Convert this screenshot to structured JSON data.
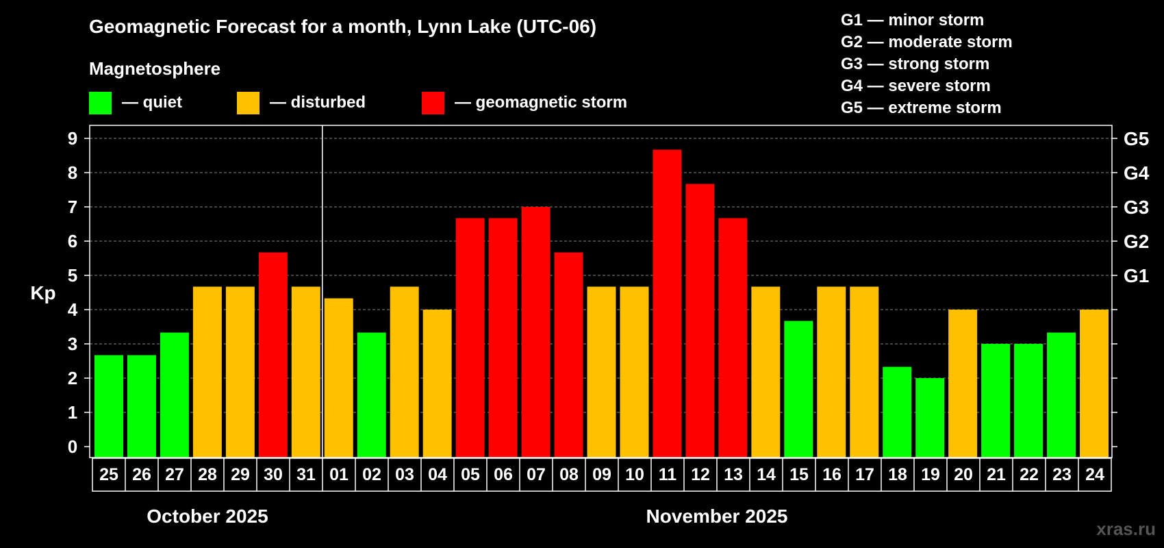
{
  "chart_data": {
    "type": "bar",
    "title": "Geomagnetic Forecast for a month, Lynn Lake (UTC-06)",
    "legend_title": "Magnetosphere",
    "legend": [
      {
        "label": "— quiet",
        "color": "#00ff00"
      },
      {
        "label": "— disturbed",
        "color": "#ffc000"
      },
      {
        "label": "— geomagnetic storm",
        "color": "#ff0000"
      }
    ],
    "storm_scale": [
      "G1 — minor storm",
      "G2 — moderate storm",
      "G3 — strong storm",
      "G4 — severe storm",
      "G5 — extreme storm"
    ],
    "ylabel": "Kp",
    "ylim": [
      0,
      9
    ],
    "yticks": [
      "0",
      "1",
      "2",
      "3",
      "4",
      "5",
      "6",
      "7",
      "8",
      "9"
    ],
    "right_ticks": [
      {
        "label": "G1",
        "kp": 5
      },
      {
        "label": "G2",
        "kp": 6
      },
      {
        "label": "G3",
        "kp": 7
      },
      {
        "label": "G4",
        "kp": 8
      },
      {
        "label": "G5",
        "kp": 9
      }
    ],
    "categories": [
      "25",
      "26",
      "27",
      "28",
      "29",
      "30",
      "31",
      "01",
      "02",
      "03",
      "04",
      "05",
      "06",
      "07",
      "08",
      "09",
      "10",
      "11",
      "12",
      "13",
      "14",
      "15",
      "16",
      "17",
      "18",
      "19",
      "20",
      "21",
      "22",
      "23",
      "24"
    ],
    "values": [
      2.67,
      2.67,
      3.33,
      4.67,
      4.67,
      5.67,
      4.67,
      4.33,
      3.33,
      4.67,
      4.0,
      6.67,
      6.67,
      7.0,
      5.67,
      4.67,
      4.67,
      8.67,
      7.67,
      6.67,
      4.67,
      3.67,
      4.67,
      4.67,
      2.33,
      2.0,
      4.0,
      3.0,
      3.0,
      3.33,
      4.0
    ],
    "status": [
      "quiet",
      "quiet",
      "quiet",
      "disturbed",
      "disturbed",
      "storm",
      "disturbed",
      "disturbed",
      "quiet",
      "disturbed",
      "disturbed",
      "storm",
      "storm",
      "storm",
      "storm",
      "disturbed",
      "disturbed",
      "storm",
      "storm",
      "storm",
      "disturbed",
      "quiet",
      "disturbed",
      "disturbed",
      "quiet",
      "quiet",
      "disturbed",
      "quiet",
      "quiet",
      "quiet",
      "disturbed"
    ],
    "status_colors": {
      "quiet": "#00ff00",
      "disturbed": "#ffc000",
      "storm": "#ff0000"
    },
    "months": [
      {
        "label": "October 2025",
        "days": 7
      },
      {
        "label": "November 2025",
        "days": 24
      }
    ],
    "grid": true
  },
  "watermark": "xras.ru"
}
